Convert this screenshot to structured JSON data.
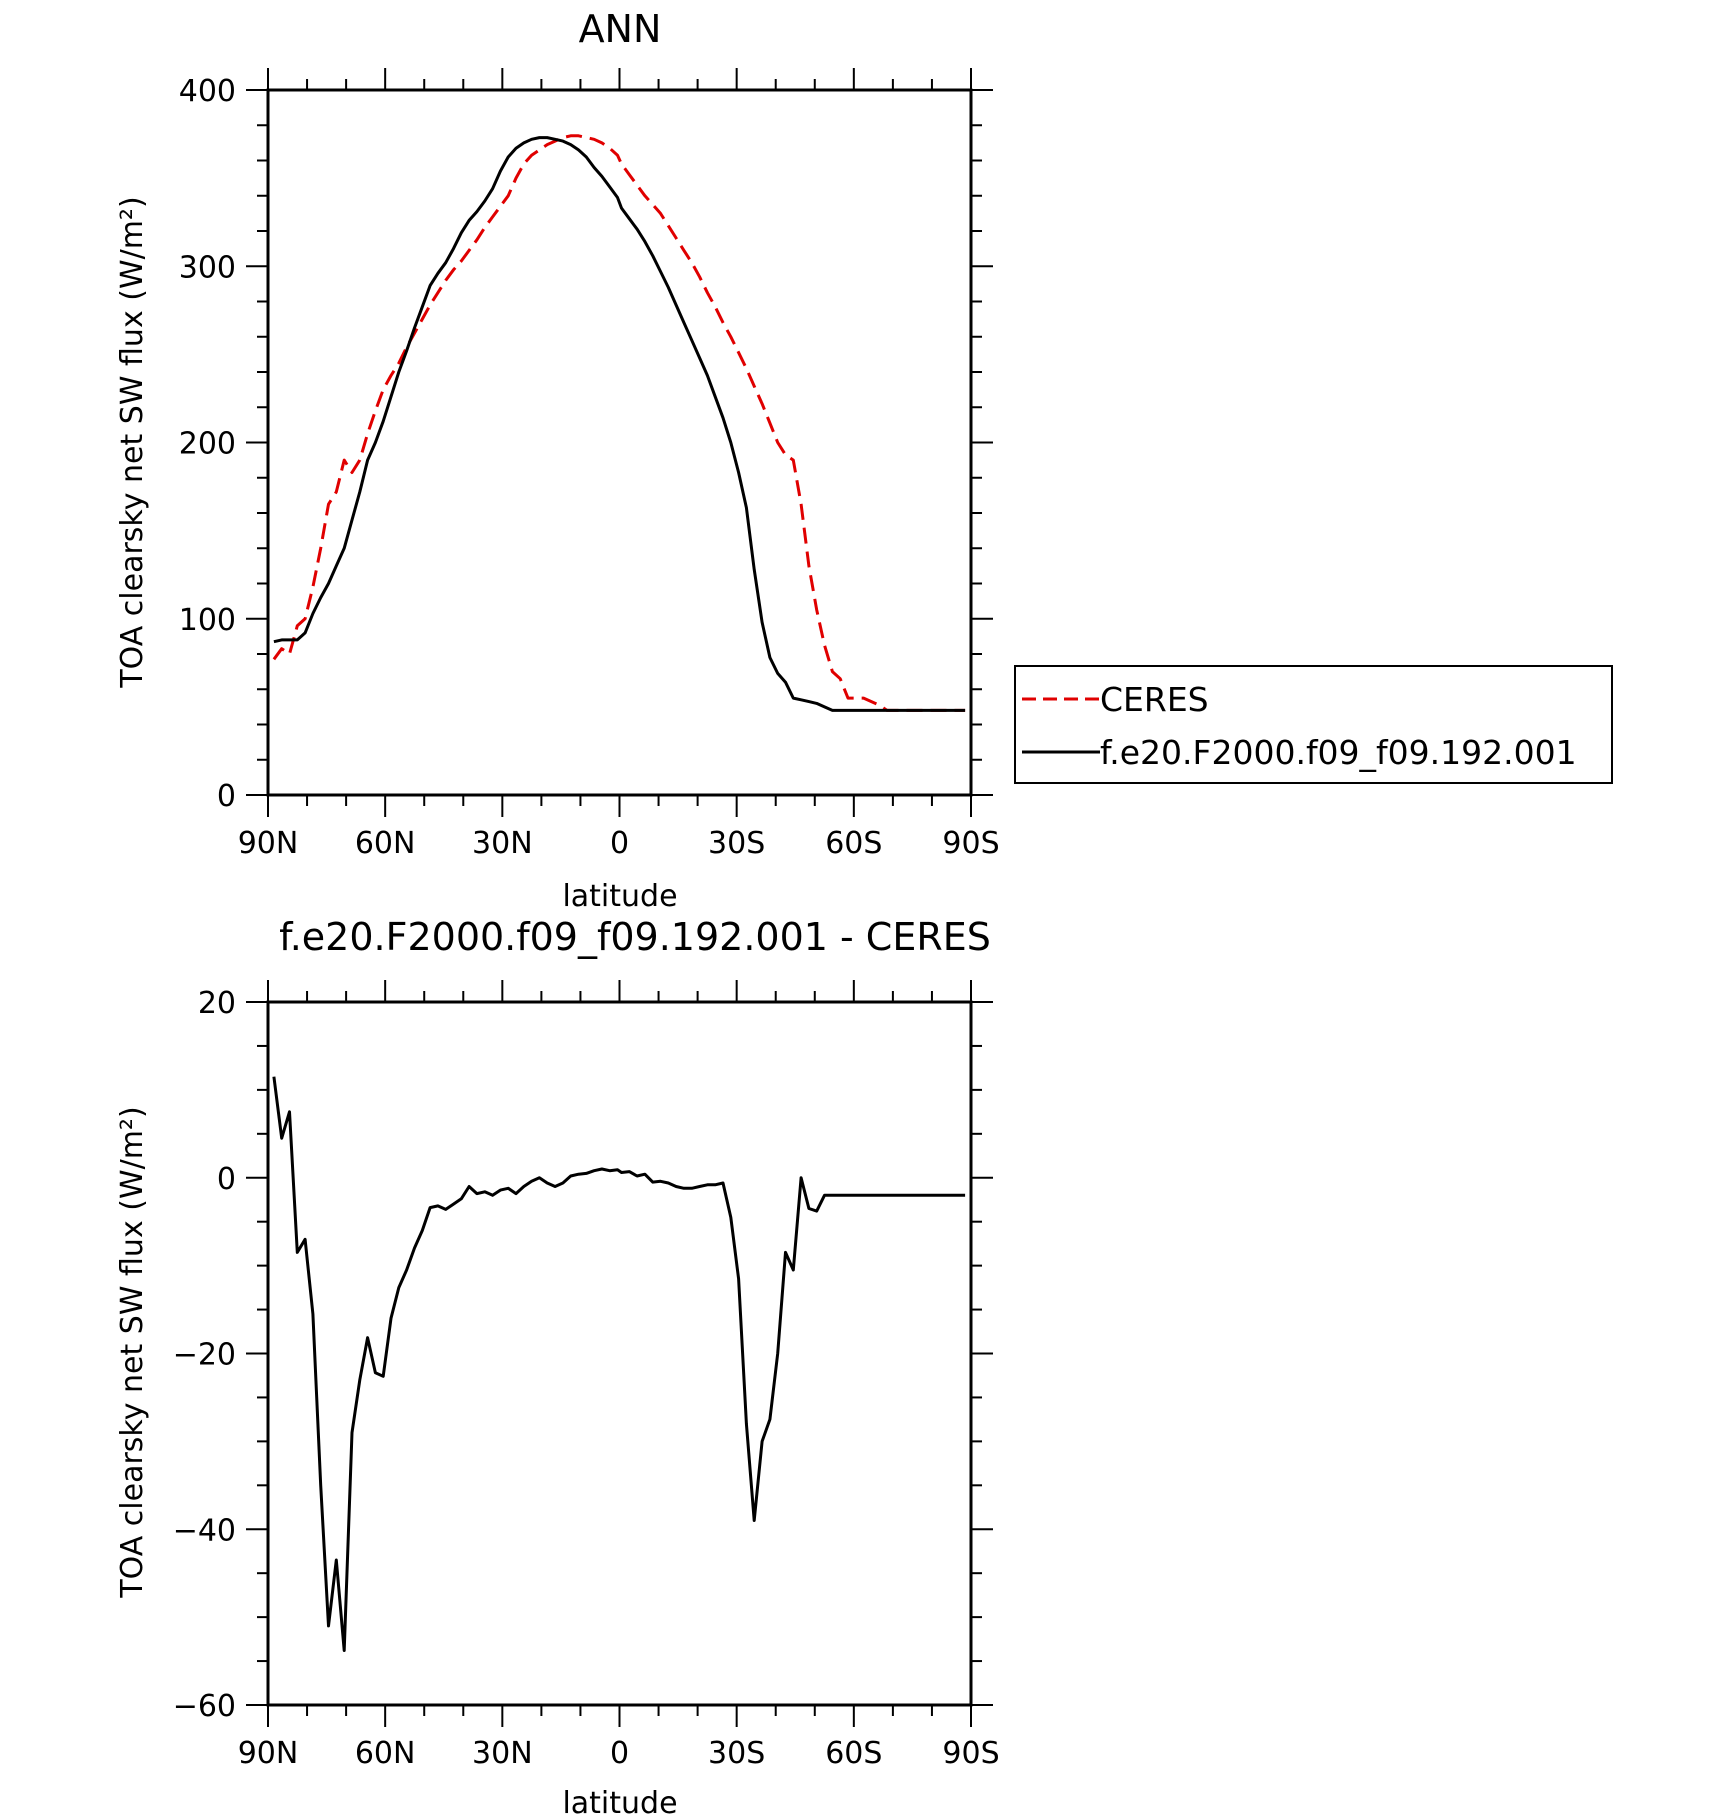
{
  "chart_data": [
    {
      "type": "line",
      "title": "ANN",
      "xlabel": "latitude",
      "ylabel": "TOA clearsky net SW flux (W/m²)",
      "xlim": [
        90,
        -90
      ],
      "ylim": [
        0,
        400
      ],
      "yticks": [
        0,
        100,
        200,
        300,
        400
      ],
      "xtick_values": [
        90,
        60,
        30,
        0,
        -30,
        -60,
        -90
      ],
      "xtick_labels": [
        "90N",
        "60N",
        "30N",
        "0",
        "30S",
        "60S",
        "90S"
      ],
      "legend": {
        "position": "right",
        "entries": [
          {
            "name": "CERES",
            "color": "#e00000",
            "dash": "dashed"
          },
          {
            "name": "f.e20.F2000.f09_f09.192.001",
            "color": "#000000",
            "dash": "solid"
          }
        ]
      },
      "series": [
        {
          "name": "CERES",
          "color": "#e00000",
          "dash": "dashed",
          "x": [
            88.5,
            86.5,
            84.5,
            82.5,
            80.5,
            78.5,
            76.5,
            74.5,
            72.5,
            70.5,
            68.5,
            66.5,
            64.5,
            62.5,
            60.5,
            58.5,
            56.5,
            54.5,
            52.5,
            50.5,
            48.5,
            46.5,
            44.5,
            42.5,
            40.5,
            38.5,
            36.5,
            34.5,
            32.5,
            30.5,
            28.5,
            26.5,
            24.5,
            22.5,
            20.5,
            18.5,
            16.5,
            14.5,
            12.5,
            10.5,
            8.5,
            6.5,
            4.5,
            2.5,
            0.5,
            -0.5,
            -2.5,
            -4.5,
            -6.5,
            -8.5,
            -10.5,
            -12.5,
            -14.5,
            -16.5,
            -18.5,
            -20.5,
            -22.5,
            -24.5,
            -26.5,
            -28.5,
            -30.5,
            -32.5,
            -34.5,
            -36.5,
            -38.5,
            -40.5,
            -42.5,
            -44.5,
            -46.5,
            -48.5,
            -50.5,
            -52.5,
            -54.5,
            -56.5,
            -58.5,
            -60.5,
            -62.5,
            -64.5,
            -66.5,
            -68.5,
            -70.5,
            -72.5,
            -74.5,
            -76.5,
            -78.5,
            -80.5,
            -82.5,
            -84.5,
            -86.5,
            -88.5
          ],
          "y": [
            77,
            83,
            80,
            96,
            100,
            118,
            140,
            165,
            172,
            190,
            183,
            190,
            205,
            218,
            230,
            238,
            245,
            254,
            262,
            270,
            278,
            285,
            292,
            298,
            303,
            309,
            315,
            322,
            328,
            334,
            340,
            350,
            358,
            363,
            366,
            369,
            371,
            373,
            374,
            374,
            373,
            372,
            370,
            367,
            363,
            358,
            352,
            346,
            340,
            335,
            330,
            323,
            316,
            309,
            302,
            294,
            285,
            277,
            268,
            260,
            251,
            242,
            232,
            222,
            211,
            200,
            193,
            190,
            165,
            130,
            105,
            85,
            70,
            66,
            55,
            55,
            55,
            53,
            51,
            48,
            48,
            48,
            48,
            48,
            48,
            48,
            48,
            48,
            48,
            48
          ]
        },
        {
          "name": "f.e20.F2000.f09_f09.192.001",
          "color": "#000000",
          "dash": "solid",
          "x": [
            88.5,
            86.5,
            84.5,
            82.5,
            80.5,
            78.5,
            76.5,
            74.5,
            72.5,
            70.5,
            68.5,
            66.5,
            64.5,
            62.5,
            60.5,
            58.5,
            56.5,
            54.5,
            52.5,
            50.5,
            48.5,
            46.5,
            44.5,
            42.5,
            40.5,
            38.5,
            36.5,
            34.5,
            32.5,
            30.5,
            28.5,
            26.5,
            24.5,
            22.5,
            20.5,
            18.5,
            16.5,
            14.5,
            12.5,
            10.5,
            8.5,
            6.5,
            4.5,
            2.5,
            0.5,
            -0.5,
            -2.5,
            -4.5,
            -6.5,
            -8.5,
            -10.5,
            -12.5,
            -14.5,
            -16.5,
            -18.5,
            -20.5,
            -22.5,
            -24.5,
            -26.5,
            -28.5,
            -30.5,
            -32.5,
            -34.5,
            -36.5,
            -38.5,
            -40.5,
            -42.5,
            -44.5,
            -46.5,
            -48.5,
            -50.5,
            -52.5,
            -54.5,
            -56.5,
            -58.5,
            -60.5,
            -62.5,
            -64.5,
            -66.5,
            -68.5,
            -70.5,
            -72.5,
            -74.5,
            -76.5,
            -78.5,
            -80.5,
            -82.5,
            -84.5,
            -86.5,
            -88.5
          ],
          "y": [
            87,
            88,
            88,
            88,
            92,
            103,
            112,
            120,
            130,
            140,
            156,
            172,
            190,
            200,
            212,
            226,
            240,
            252,
            265,
            277,
            289,
            296,
            302,
            310,
            319,
            326,
            331,
            337,
            344,
            354,
            362,
            367,
            370,
            372,
            373,
            373,
            372,
            371,
            369,
            366,
            362,
            356,
            351,
            345,
            339,
            333,
            327,
            321,
            314,
            306,
            297,
            288,
            278,
            268,
            258,
            248,
            238,
            226,
            214,
            200,
            183,
            163,
            128,
            98,
            78,
            69,
            64,
            55,
            54,
            53,
            52,
            50,
            48,
            48,
            48,
            48,
            48,
            48,
            48,
            48,
            48,
            48,
            48,
            48,
            48,
            48,
            48,
            48,
            48,
            48
          ]
        }
      ]
    },
    {
      "type": "line",
      "title": "f.e20.F2000.f09_f09.192.001 - CERES",
      "xlabel": "latitude",
      "ylabel": "TOA clearsky net SW flux (W/m²)",
      "xlim": [
        90,
        -90
      ],
      "ylim": [
        -60,
        20
      ],
      "yticks": [
        -60,
        -40,
        -20,
        0,
        20
      ],
      "xtick_values": [
        90,
        60,
        30,
        0,
        -30,
        -60,
        -90
      ],
      "xtick_labels": [
        "90N",
        "60N",
        "30N",
        "0",
        "30S",
        "60S",
        "90S"
      ],
      "series": [
        {
          "color": "#000000",
          "dash": "solid",
          "x": [
            88.5,
            86.5,
            84.5,
            82.5,
            80.5,
            78.5,
            76.5,
            74.5,
            72.5,
            70.5,
            68.5,
            66.5,
            64.5,
            62.5,
            60.5,
            58.5,
            56.5,
            54.5,
            52.5,
            50.5,
            48.5,
            46.5,
            44.5,
            42.5,
            40.5,
            38.5,
            36.5,
            34.5,
            32.5,
            30.5,
            28.5,
            26.5,
            24.5,
            22.5,
            20.5,
            18.5,
            16.5,
            14.5,
            12.5,
            10.5,
            8.5,
            6.5,
            4.5,
            2.5,
            0.5,
            -0.5,
            -2.5,
            -4.5,
            -6.5,
            -8.5,
            -10.5,
            -12.5,
            -14.5,
            -16.5,
            -18.5,
            -20.5,
            -22.5,
            -24.5,
            -26.5,
            -28.5,
            -30.5,
            -32.5,
            -34.5,
            -36.5,
            -38.5,
            -40.5,
            -42.5,
            -44.5,
            -46.5,
            -48.5,
            -50.5,
            -52.5,
            -54.5,
            -56.5,
            -58.5,
            -60.5,
            -62.5,
            -64.5,
            -66.5,
            -68.5,
            -70.5,
            -72.5,
            -74.5,
            -76.5,
            -78.5,
            -80.5,
            -82.5,
            -84.5,
            -86.5,
            -88.5
          ],
          "y": [
            11.5,
            4.5,
            7.5,
            -8.5,
            -7.0,
            -15.5,
            -35.0,
            -51.0,
            -43.5,
            -53.8,
            -29.0,
            -23.0,
            -18.2,
            -22.2,
            -22.6,
            -16.0,
            -12.5,
            -10.5,
            -8.0,
            -6.0,
            -3.4,
            -3.2,
            -3.6,
            -3.0,
            -2.4,
            -1.0,
            -1.8,
            -1.6,
            -2.0,
            -1.4,
            -1.2,
            -1.8,
            -1.0,
            -0.4,
            0.0,
            -0.6,
            -1.0,
            -0.6,
            0.2,
            0.4,
            0.5,
            0.8,
            1.0,
            0.8,
            0.9,
            0.6,
            0.7,
            0.2,
            0.4,
            -0.5,
            -0.4,
            -0.6,
            -1.0,
            -1.2,
            -1.2,
            -1.0,
            -0.8,
            -0.8,
            -0.6,
            -4.5,
            -11.5,
            -28.0,
            -39.0,
            -30.0,
            -27.5,
            -20.0,
            -8.5,
            -10.5,
            0.0,
            -3.5,
            -3.8,
            -2.0,
            -2.0,
            -2.0,
            -2.0,
            -2.0,
            -2.0,
            -2.0,
            -2.0,
            -2.0,
            -2.0,
            -2.0,
            -2.0,
            -2.0,
            -2.0,
            -2.0,
            -2.0,
            -2.0,
            -2.0,
            -2.0
          ]
        }
      ]
    }
  ]
}
